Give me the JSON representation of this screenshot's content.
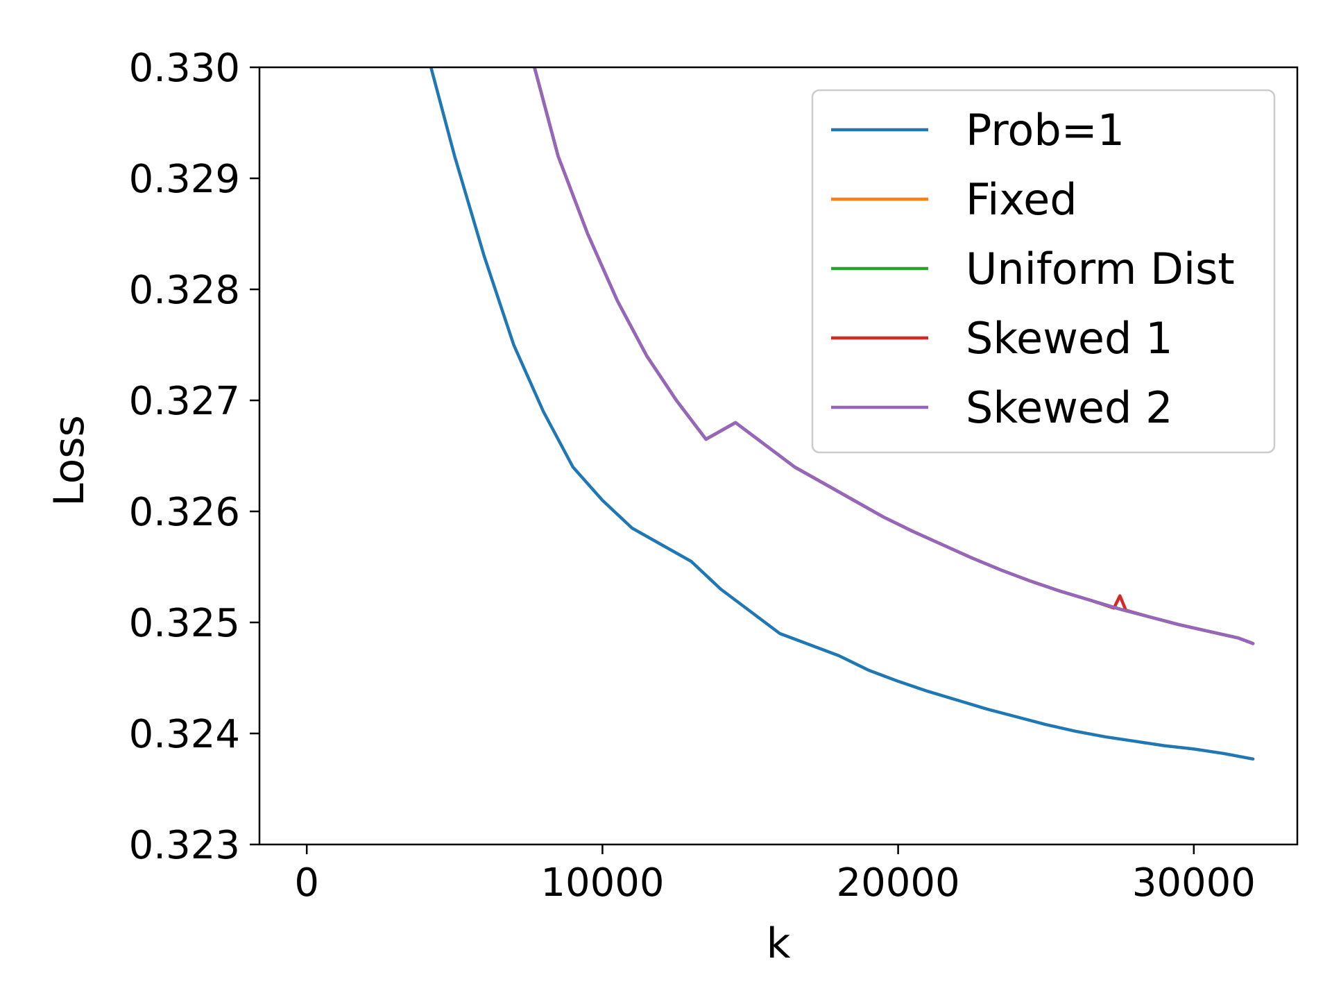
{
  "chart_data": {
    "type": "line",
    "title": "",
    "xlabel": "k",
    "ylabel": "Loss",
    "xlim": [
      -1600,
      33500
    ],
    "ylim": [
      0.323,
      0.33
    ],
    "xticks": [
      0,
      10000,
      20000,
      30000
    ],
    "xtick_labels": [
      "0",
      "10000",
      "20000",
      "30000"
    ],
    "yticks": [
      0.323,
      0.324,
      0.325,
      0.326,
      0.327,
      0.328,
      0.329,
      0.33
    ],
    "ytick_labels": [
      "0.323",
      "0.324",
      "0.325",
      "0.326",
      "0.327",
      "0.328",
      "0.329",
      "0.330"
    ],
    "grid": false,
    "legend_position": "top-right",
    "series": [
      {
        "name": "Prob=1",
        "color": "#1f77b4",
        "x": [
          4200,
          5000,
          6000,
          7000,
          8000,
          9000,
          10000,
          11000,
          12000,
          13000,
          14000,
          15000,
          16000,
          17000,
          18000,
          19000,
          20000,
          21000,
          22000,
          23000,
          24000,
          25000,
          26000,
          27000,
          28000,
          29000,
          30000,
          31000,
          32000
        ],
        "y": [
          0.33,
          0.3292,
          0.3283,
          0.3275,
          0.3269,
          0.3264,
          0.3261,
          0.32585,
          0.3257,
          0.32555,
          0.3253,
          0.3251,
          0.3249,
          0.3248,
          0.3247,
          0.32457,
          0.32447,
          0.32438,
          0.3243,
          0.32422,
          0.32415,
          0.32408,
          0.32402,
          0.32397,
          0.32393,
          0.32389,
          0.32386,
          0.32382,
          0.32377
        ]
      },
      {
        "name": "Fixed",
        "color": "#ff7f0e",
        "x": [
          7700,
          8500,
          9500,
          10500,
          11500,
          12500,
          13500,
          14500,
          15500,
          16500,
          17500,
          18500,
          19500,
          20500,
          21500,
          22500,
          23500,
          24500,
          25500,
          26500,
          27500,
          28500,
          29500,
          30500,
          31500,
          32000
        ],
        "y": [
          0.33,
          0.3292,
          0.3285,
          0.3279,
          0.3274,
          0.327,
          0.32665,
          0.3268,
          0.3266,
          0.3264,
          0.32625,
          0.3261,
          0.32595,
          0.32582,
          0.3257,
          0.32558,
          0.32547,
          0.32537,
          0.32528,
          0.3252,
          0.32512,
          0.32505,
          0.32498,
          0.32492,
          0.32486,
          0.32481
        ]
      },
      {
        "name": "Uniform Dist",
        "color": "#2ca02c",
        "x": [
          7700,
          8500,
          9500,
          10500,
          11500,
          12500,
          13500,
          14500,
          15500,
          16500,
          17500,
          18500,
          19500,
          20500,
          21500,
          22500,
          23500,
          24500,
          25500,
          26500,
          27500,
          28500,
          29500,
          30500,
          31500,
          32000
        ],
        "y": [
          0.33,
          0.3292,
          0.3285,
          0.3279,
          0.3274,
          0.327,
          0.32665,
          0.3268,
          0.3266,
          0.3264,
          0.32625,
          0.3261,
          0.32595,
          0.32582,
          0.3257,
          0.32558,
          0.32547,
          0.32537,
          0.32528,
          0.3252,
          0.32512,
          0.32505,
          0.32498,
          0.32492,
          0.32486,
          0.32481
        ]
      },
      {
        "name": "Skewed 1",
        "color": "#d62728",
        "x": [
          7700,
          8500,
          9500,
          10500,
          11500,
          12500,
          13500,
          14500,
          15500,
          16500,
          17500,
          18500,
          19500,
          20500,
          21500,
          22500,
          23500,
          24500,
          25500,
          26500,
          27300,
          27500,
          27700,
          28500,
          29500,
          30500,
          31500,
          32000
        ],
        "y": [
          0.33,
          0.3292,
          0.3285,
          0.3279,
          0.3274,
          0.327,
          0.32665,
          0.3268,
          0.3266,
          0.3264,
          0.32625,
          0.3261,
          0.32595,
          0.32582,
          0.3257,
          0.32558,
          0.32547,
          0.32537,
          0.32528,
          0.3252,
          0.32513,
          0.32524,
          0.32511,
          0.32505,
          0.32498,
          0.32492,
          0.32486,
          0.32481
        ]
      },
      {
        "name": "Skewed 2",
        "color": "#9467bd",
        "x": [
          7700,
          8500,
          9500,
          10500,
          11500,
          12500,
          13500,
          14500,
          15500,
          16500,
          17500,
          18500,
          19500,
          20500,
          21500,
          22500,
          23500,
          24500,
          25500,
          26500,
          27500,
          28500,
          29500,
          30500,
          31500,
          32000
        ],
        "y": [
          0.33,
          0.3292,
          0.3285,
          0.3279,
          0.3274,
          0.327,
          0.32665,
          0.3268,
          0.3266,
          0.3264,
          0.32625,
          0.3261,
          0.32595,
          0.32582,
          0.3257,
          0.32558,
          0.32547,
          0.32537,
          0.32528,
          0.3252,
          0.32512,
          0.32505,
          0.32498,
          0.32492,
          0.32486,
          0.32481
        ]
      }
    ]
  }
}
